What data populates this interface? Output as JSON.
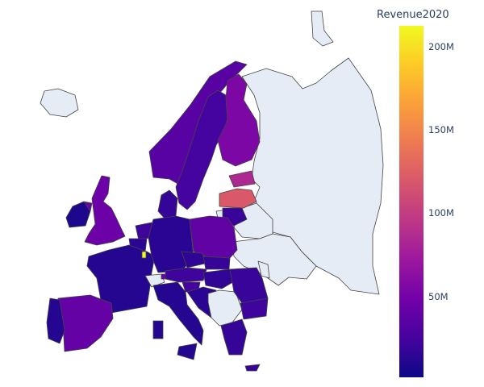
{
  "map": {
    "legend_title": "Revenue2020",
    "no_data_color": "#e5ecf6",
    "border_color": "#444444",
    "colorscale": [
      "#0d0887",
      "#46039f",
      "#7201a8",
      "#9c179e",
      "#bd3786",
      "#d8576b",
      "#ed7953",
      "#fb9f3a",
      "#fdca26",
      "#f0f921"
    ],
    "color_range": [
      2000000,
      213000000
    ],
    "ticks": [
      {
        "label": "200M",
        "value": 200000000
      },
      {
        "label": "150M",
        "value": 150000000
      },
      {
        "label": "100M",
        "value": 100000000
      },
      {
        "label": "50M",
        "value": 50000000
      }
    ],
    "regions": [
      {
        "name": "Russia",
        "has_data": false
      },
      {
        "name": "Belarus",
        "has_data": false
      },
      {
        "name": "Ukraine",
        "has_data": false
      },
      {
        "name": "Moldova",
        "has_data": false
      },
      {
        "name": "Iceland",
        "has_data": false
      },
      {
        "name": "Svalbard",
        "has_data": false
      },
      {
        "name": "Switzerland",
        "has_data": false
      },
      {
        "name": "Western Balkans",
        "has_data": false
      },
      {
        "name": "Norway",
        "value": 35000000
      },
      {
        "name": "Sweden",
        "value": 25000000
      },
      {
        "name": "Finland",
        "value": 55000000
      },
      {
        "name": "Estonia",
        "value": 85000000
      },
      {
        "name": "Latvia",
        "value": 120000000
      },
      {
        "name": "Lithuania",
        "value": 20000000
      },
      {
        "name": "Denmark",
        "value": 18000000
      },
      {
        "name": "Ireland",
        "value": 8000000
      },
      {
        "name": "United Kingdom",
        "value": 45000000
      },
      {
        "name": "Netherlands",
        "value": 22000000
      },
      {
        "name": "Belgium",
        "value": 15000000
      },
      {
        "name": "Luxembourg",
        "value": 213000000
      },
      {
        "name": "France",
        "value": 12000000
      },
      {
        "name": "Germany",
        "value": 14000000
      },
      {
        "name": "Poland",
        "value": 40000000
      },
      {
        "name": "Czechia",
        "value": 16000000
      },
      {
        "name": "Slovakia",
        "value": 18000000
      },
      {
        "name": "Austria",
        "value": 22000000
      },
      {
        "name": "Hungary",
        "value": 17000000
      },
      {
        "name": "Slovenia",
        "value": 25000000
      },
      {
        "name": "Croatia",
        "value": 14000000
      },
      {
        "name": "Romania",
        "value": 20000000
      },
      {
        "name": "Bulgaria",
        "value": 22000000
      },
      {
        "name": "Greece",
        "value": 18000000
      },
      {
        "name": "Italy",
        "value": 12000000
      },
      {
        "name": "Spain",
        "value": 42000000
      },
      {
        "name": "Portugal",
        "value": 12000000
      },
      {
        "name": "Cyprus",
        "value": 20000000
      },
      {
        "name": "Liechtenstein",
        "value": 45000000
      }
    ]
  }
}
